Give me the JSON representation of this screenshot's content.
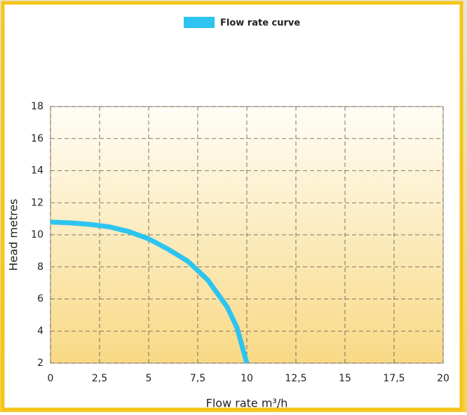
{
  "chart_data": {
    "type": "line",
    "xlabel": "Flow rate m³/h",
    "ylabel": "Head metres",
    "x": [
      0,
      1,
      2,
      3,
      4,
      5,
      6,
      7,
      8,
      9,
      9.5,
      10
    ],
    "series": [
      {
        "name": "Flow rate curve",
        "color": "#2ec4f0",
        "values": [
          10.8,
          10.75,
          10.65,
          10.5,
          10.2,
          9.75,
          9.1,
          8.35,
          7.2,
          5.5,
          4.2,
          2
        ]
      }
    ],
    "xlim": [
      0,
      20
    ],
    "xticks": [
      0,
      {
        "value": 2.5,
        "label": "2,5"
      },
      5,
      {
        "value": 7.5,
        "label": "7,5"
      },
      10,
      {
        "value": 12.5,
        "label": "12,5"
      },
      15,
      {
        "value": 17.5,
        "label": "17,5"
      },
      20
    ],
    "ylim": [
      2,
      18
    ],
    "yticks": [
      2,
      4,
      6,
      8,
      10,
      12,
      14,
      16,
      18
    ],
    "grid": true,
    "legend": "top"
  }
}
